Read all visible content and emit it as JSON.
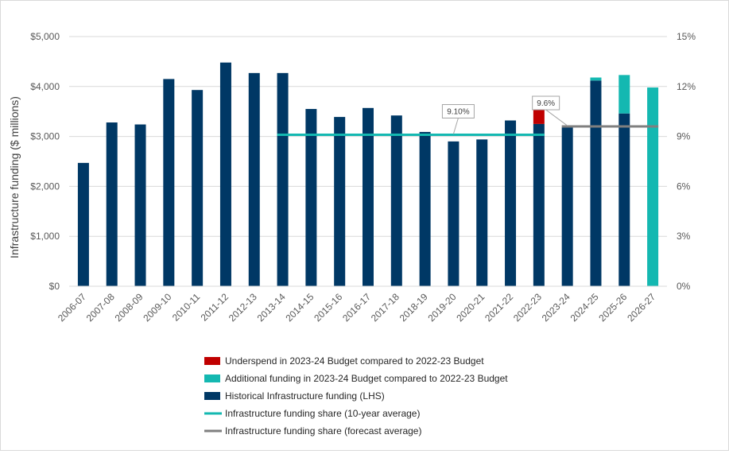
{
  "chart_data": {
    "type": "bar",
    "ylabel": "Infrastructure funding ($ millions)",
    "ylim": [
      0,
      5000
    ],
    "y_ticks": [
      "$0",
      "$1,000",
      "$2,000",
      "$3,000",
      "$4,000",
      "$5,000"
    ],
    "y2lim": [
      0,
      15
    ],
    "y2_ticks": [
      "0%",
      "3%",
      "6%",
      "9%",
      "12%",
      "15%"
    ],
    "grid": true,
    "legend_position": "bottom",
    "categories": [
      "2006-07",
      "2007-08",
      "2008-09",
      "2009-10",
      "2010-11",
      "2011-12",
      "2012-13",
      "2013-14",
      "2014-15",
      "2015-16",
      "2016-17",
      "2017-18",
      "2018-19",
      "2019-20",
      "2020-21",
      "2021-22",
      "2022-23",
      "2023-24",
      "2024-25",
      "2025-26",
      "2026-27"
    ],
    "series": [
      {
        "name": "Historical Infrastructure funding (LHS)",
        "kind": "bar",
        "color": "#003865",
        "values": [
          2470,
          3280,
          3240,
          4150,
          3930,
          4480,
          4270,
          4270,
          3550,
          3390,
          3570,
          3420,
          3090,
          2900,
          2940,
          3320,
          3250,
          3180,
          4120,
          3460,
          0
        ]
      },
      {
        "name": "Underspend in 2023-24 Budget compared to 2022-23 Budget",
        "kind": "bar",
        "color": "#c00000",
        "values": [
          0,
          0,
          0,
          0,
          0,
          0,
          0,
          0,
          0,
          0,
          0,
          0,
          0,
          0,
          0,
          0,
          370,
          0,
          0,
          0,
          0
        ]
      },
      {
        "name": "Additional funding in 2023-24 Budget compared to 2022-23 Budget",
        "kind": "bar",
        "color": "#14b8b1",
        "values": [
          0,
          0,
          0,
          0,
          0,
          0,
          0,
          0,
          0,
          0,
          0,
          0,
          0,
          0,
          0,
          0,
          0,
          0,
          60,
          770,
          3980
        ]
      },
      {
        "name": "Infrastructure funding share (10-year average)",
        "kind": "line",
        "axis": "right",
        "color": "#14b8b1",
        "from": "2013-14",
        "to": "2022-23",
        "value": 9.1
      },
      {
        "name": "Infrastructure funding share (forecast average)",
        "kind": "line",
        "axis": "right",
        "color": "#7f7f7f",
        "from": "2023-24",
        "to": "2026-27",
        "value": 9.6
      }
    ],
    "annotations": [
      {
        "text": "9.10%",
        "category": "2019-20",
        "value": 9.1
      },
      {
        "text": "9.6%",
        "category": "2023-24",
        "value": 9.6
      }
    ],
    "legend_order": [
      1,
      2,
      0,
      3,
      4
    ]
  }
}
